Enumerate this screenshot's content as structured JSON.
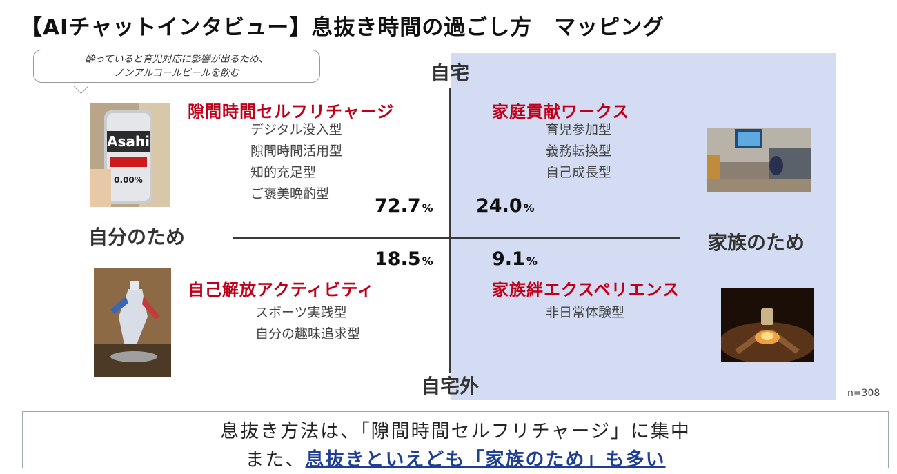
{
  "title": "【AIチャットインタビュー】息抜き時間の過ごし方　マッピング",
  "axes": {
    "top": "自宅",
    "bottom": "自宅外",
    "left": "自分のため",
    "right": "家族のため"
  },
  "bubble": {
    "line1": "酔っていると育児対応に影響が出るため、",
    "line2": "ノンアルコールビールを飲む"
  },
  "quadrants": {
    "top_left": {
      "name": "隙間時間セルフリチャージ",
      "types": [
        "デジタル没入型",
        "隙間時間活用型",
        "知的充足型",
        "ご褒美晩酌型"
      ],
      "percent": "72.7",
      "unit": "%"
    },
    "top_right": {
      "name": "家庭貢献ワークス",
      "types": [
        "育児参加型",
        "義務転換型",
        "自己成長型"
      ],
      "percent": "24.0",
      "unit": "%"
    },
    "bottom_left": {
      "name": "自己解放アクティビティ",
      "types": [
        "スポーツ実践型",
        "自分の趣味追求型"
      ],
      "percent": "18.5",
      "unit": "%"
    },
    "bottom_right": {
      "name": "家族絆エクスペリエンス",
      "types": [
        "非日常体験型"
      ],
      "percent": "9.1",
      "unit": "%"
    }
  },
  "sample_size": "n=308",
  "summary": {
    "line1": "息抜き方法は、「隙間時間セルフリチャージ」に集中",
    "line2_prefix": "また、",
    "line2_emphasis": "息抜きといえども「家族のため」も多い"
  },
  "colors": {
    "quadrant_name": "#c0001a",
    "panel": "#d3dcf3",
    "emphasis": "#1f3f96"
  },
  "icons": [
    "beer-can-photo",
    "living-room-photo",
    "robot-figure-photo",
    "campfire-photo"
  ]
}
